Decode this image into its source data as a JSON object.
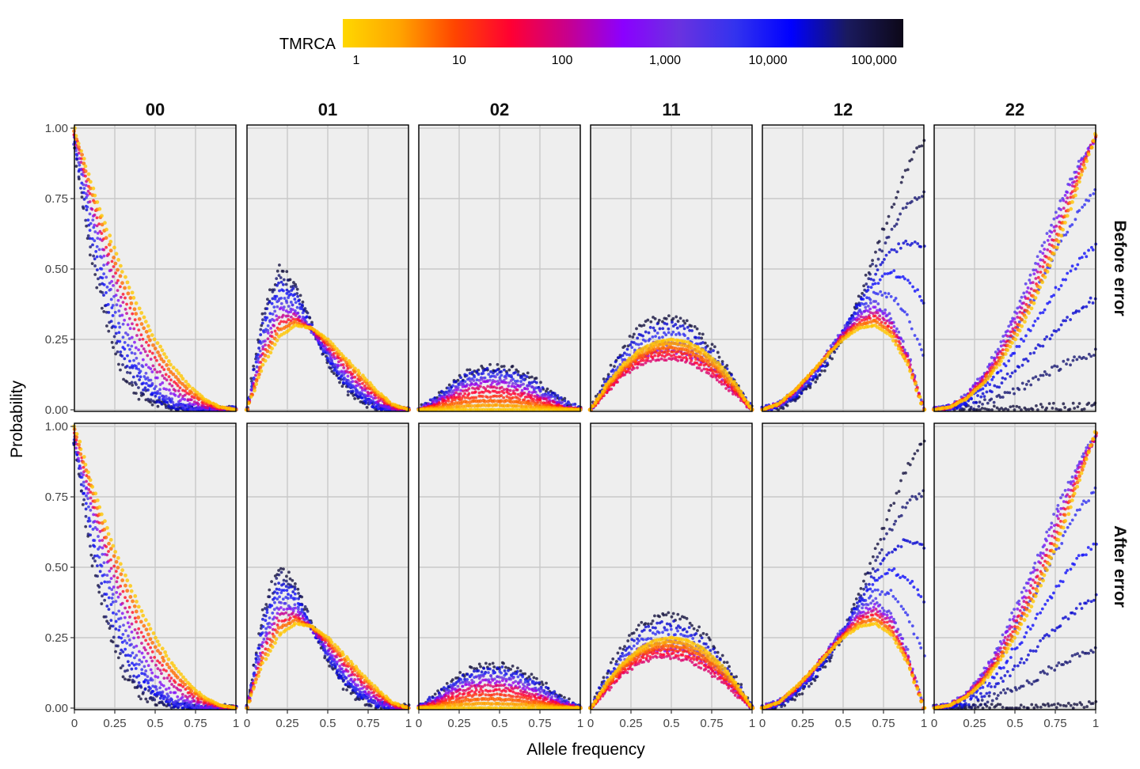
{
  "legend": {
    "title": "TMRCA",
    "tick_labels": [
      "1",
      "10",
      "100",
      "1,000",
      "10,000",
      "100,000"
    ],
    "scale": "log10",
    "colors": [
      "#FFD700",
      "#FFA500",
      "#FF4500",
      "#FF0033",
      "#C8008C",
      "#8B00FF",
      "#6A32E0",
      "#3333EE",
      "#0000FF",
      "#1A1A5E",
      "#0D0818"
    ]
  },
  "chart_data": {
    "type": "scatter",
    "xlabel": "Allele frequency",
    "ylabel": "Probability",
    "xlim": [
      0,
      1
    ],
    "ylim": [
      0,
      1
    ],
    "x_tick_labels": [
      "0",
      "0.25",
      "0.5",
      "0.75",
      "1"
    ],
    "y_tick_labels": [
      "0.00",
      "0.25",
      "0.50",
      "0.75",
      "1.00"
    ],
    "x_ticks": [
      0,
      0.25,
      0.5,
      0.75,
      1
    ],
    "y_ticks": [
      0,
      0.25,
      0.5,
      0.75,
      1
    ],
    "grid": true,
    "columns": [
      "00",
      "01",
      "02",
      "11",
      "12",
      "22"
    ],
    "rows": [
      "Before error",
      "After error"
    ],
    "color_variable": "TMRCA",
    "color_log10_range": [
      0,
      5.5
    ],
    "panels": {
      "00": {
        "series": [
          {
            "tmrca_log10": 0.2,
            "x": [
              0,
              0.1,
              0.2,
              0.3,
              0.4,
              0.5,
              0.6,
              0.7,
              0.8,
              0.9,
              1
            ],
            "y": [
              1.0,
              0.81,
              0.64,
              0.49,
              0.36,
              0.25,
              0.16,
              0.09,
              0.04,
              0.01,
              0.0
            ]
          },
          {
            "tmrca_log10": 3.6,
            "x": [
              0,
              0.1,
              0.2,
              0.3,
              0.4,
              0.5,
              0.6,
              0.7,
              0.8,
              0.9,
              1
            ],
            "y": [
              0.95,
              0.7,
              0.48,
              0.3,
              0.17,
              0.08,
              0.03,
              0.01,
              0.0,
              0.0,
              0.0
            ]
          },
          {
            "tmrca_log10": 5.2,
            "x": [
              0,
              0.1,
              0.2,
              0.3,
              0.4,
              0.5,
              0.6,
              0.7,
              0.8,
              0.9,
              1
            ],
            "y": [
              0.93,
              0.55,
              0.3,
              0.12,
              0.05,
              0.02,
              0.01,
              0.0,
              0.0,
              0.0,
              0.0
            ]
          }
        ]
      },
      "01": {
        "series": [
          {
            "tmrca_log10": 0.2,
            "x": [
              0,
              0.1,
              0.2,
              0.3,
              0.4,
              0.5,
              0.6,
              0.7,
              0.8,
              0.9,
              1
            ],
            "y": [
              0.0,
              0.16,
              0.26,
              0.3,
              0.29,
              0.25,
              0.19,
              0.13,
              0.07,
              0.02,
              0.0
            ]
          },
          {
            "tmrca_log10": 3.6,
            "x": [
              0,
              0.1,
              0.2,
              0.3,
              0.4,
              0.5,
              0.6,
              0.7,
              0.8,
              0.9,
              1
            ],
            "y": [
              0.0,
              0.25,
              0.38,
              0.36,
              0.28,
              0.2,
              0.12,
              0.06,
              0.02,
              0.0,
              0.0
            ]
          },
          {
            "tmrca_log10": 5.2,
            "x": [
              0,
              0.1,
              0.2,
              0.3,
              0.4,
              0.5,
              0.6,
              0.7,
              0.8,
              0.9,
              1
            ],
            "y": [
              0.0,
              0.35,
              0.5,
              0.45,
              0.3,
              0.17,
              0.08,
              0.03,
              0.01,
              0.0,
              0.0
            ]
          }
        ]
      },
      "02": {
        "series": [
          {
            "tmrca_log10": 0.2,
            "x": [
              0,
              0.1,
              0.2,
              0.3,
              0.4,
              0.5,
              0.6,
              0.7,
              0.8,
              0.9,
              1
            ],
            "y": [
              0.0,
              0.0,
              0.0,
              0.0,
              0.0,
              0.0,
              0.0,
              0.0,
              0.0,
              0.0,
              0.0
            ]
          },
          {
            "tmrca_log10": 2.0,
            "x": [
              0,
              0.1,
              0.2,
              0.3,
              0.4,
              0.5,
              0.6,
              0.7,
              0.8,
              0.9,
              1
            ],
            "y": [
              0.0,
              0.02,
              0.05,
              0.07,
              0.08,
              0.08,
              0.07,
              0.05,
              0.03,
              0.01,
              0.0
            ]
          },
          {
            "tmrca_log10": 5.2,
            "x": [
              0,
              0.1,
              0.2,
              0.3,
              0.4,
              0.5,
              0.6,
              0.7,
              0.8,
              0.9,
              1
            ],
            "y": [
              0.0,
              0.04,
              0.09,
              0.13,
              0.15,
              0.15,
              0.14,
              0.11,
              0.07,
              0.03,
              0.0
            ]
          }
        ]
      },
      "11": {
        "series": [
          {
            "tmrca_log10": 0.2,
            "x": [
              0,
              0.1,
              0.2,
              0.3,
              0.4,
              0.5,
              0.6,
              0.7,
              0.8,
              0.9,
              1
            ],
            "y": [
              0.0,
              0.09,
              0.16,
              0.21,
              0.24,
              0.25,
              0.24,
              0.21,
              0.16,
              0.09,
              0.0
            ]
          },
          {
            "tmrca_log10": 2.0,
            "x": [
              0,
              0.1,
              0.2,
              0.3,
              0.4,
              0.5,
              0.6,
              0.7,
              0.8,
              0.9,
              1
            ],
            "y": [
              0.0,
              0.06,
              0.12,
              0.16,
              0.18,
              0.18,
              0.17,
              0.14,
              0.1,
              0.05,
              0.0
            ]
          },
          {
            "tmrca_log10": 5.2,
            "x": [
              0,
              0.1,
              0.2,
              0.3,
              0.4,
              0.5,
              0.6,
              0.7,
              0.8,
              0.9,
              1
            ],
            "y": [
              0.0,
              0.12,
              0.22,
              0.29,
              0.32,
              0.33,
              0.31,
              0.26,
              0.19,
              0.1,
              0.0
            ]
          }
        ]
      },
      "12": {
        "series": [
          {
            "tmrca_log10": 0.2,
            "x": [
              0,
              0.1,
              0.2,
              0.3,
              0.4,
              0.5,
              0.6,
              0.7,
              0.8,
              0.9,
              1
            ],
            "y": [
              0.0,
              0.02,
              0.07,
              0.13,
              0.19,
              0.25,
              0.29,
              0.3,
              0.26,
              0.16,
              0.0
            ]
          },
          {
            "tmrca_log10": 3.6,
            "x": [
              0,
              0.1,
              0.2,
              0.3,
              0.4,
              0.5,
              0.6,
              0.7,
              0.8,
              0.9,
              1
            ],
            "y": [
              0.0,
              0.02,
              0.06,
              0.12,
              0.2,
              0.28,
              0.35,
              0.38,
              0.33,
              0.2,
              0.0
            ]
          },
          {
            "tmrca_log10": 5.2,
            "x": [
              0,
              0.1,
              0.2,
              0.3,
              0.4,
              0.5,
              0.6,
              0.7,
              0.8,
              0.9,
              1
            ],
            "y": [
              0.0,
              0.01,
              0.04,
              0.09,
              0.16,
              0.26,
              0.4,
              0.56,
              0.72,
              0.86,
              0.96
            ]
          }
        ]
      },
      "22": {
        "series": [
          {
            "tmrca_log10": 0.2,
            "x": [
              0,
              0.1,
              0.2,
              0.3,
              0.4,
              0.5,
              0.6,
              0.7,
              0.8,
              0.9,
              1
            ],
            "y": [
              0.0,
              0.01,
              0.04,
              0.09,
              0.16,
              0.25,
              0.36,
              0.49,
              0.64,
              0.81,
              0.98
            ]
          },
          {
            "tmrca_log10": 3.6,
            "x": [
              0,
              0.1,
              0.2,
              0.3,
              0.4,
              0.5,
              0.6,
              0.7,
              0.8,
              0.9,
              1
            ],
            "y": [
              0.0,
              0.01,
              0.05,
              0.12,
              0.22,
              0.35,
              0.48,
              0.62,
              0.76,
              0.88,
              0.96
            ]
          },
          {
            "tmrca_log10": 5.2,
            "x": [
              0,
              0.1,
              0.2,
              0.3,
              0.4,
              0.5,
              0.6,
              0.7,
              0.8,
              0.9,
              1
            ],
            "y": [
              0.0,
              0.0,
              0.0,
              0.0,
              0.0,
              0.0,
              0.0,
              0.01,
              0.01,
              0.01,
              0.02
            ]
          }
        ]
      }
    }
  }
}
